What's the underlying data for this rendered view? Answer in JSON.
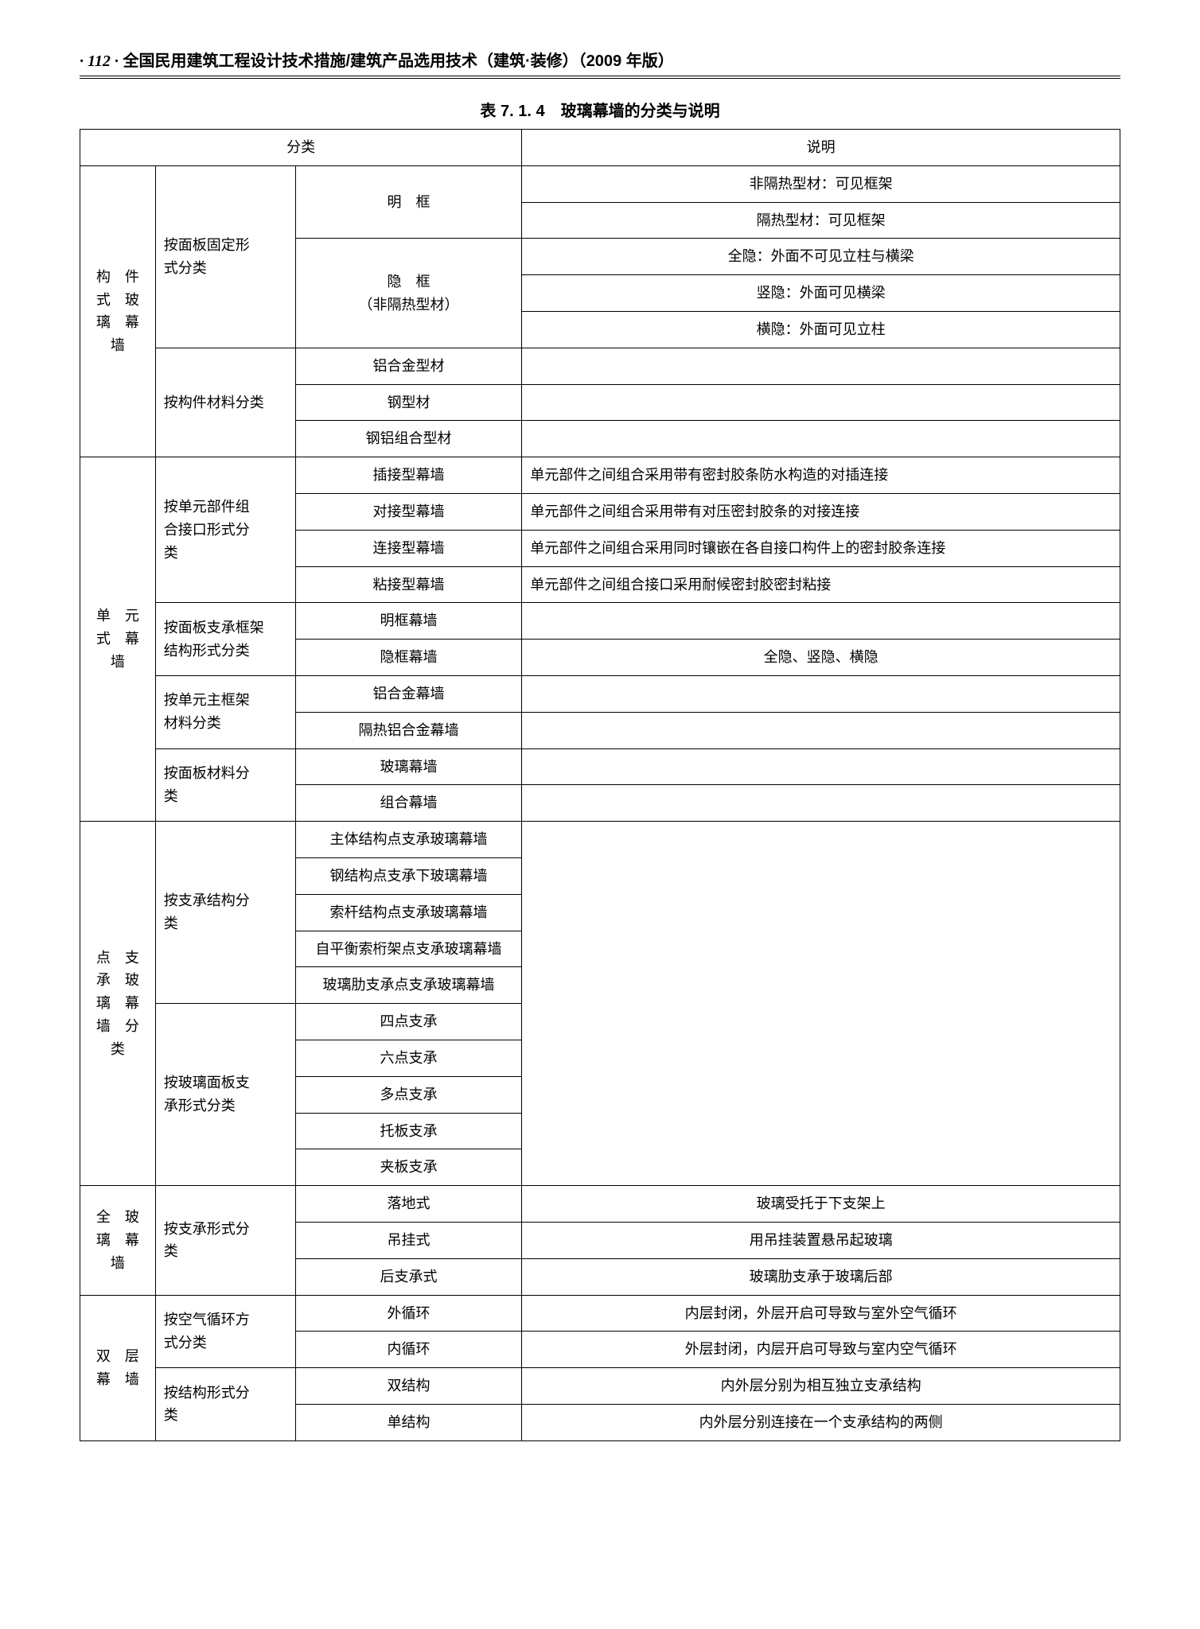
{
  "page": {
    "number": "· 112 ·",
    "title": "全国民用建筑工程设计技术措施/建筑产品选用技术（建筑·装修）（2009 年版）"
  },
  "caption": "表 7. 1. 4　玻璃幕墙的分类与说明",
  "head": {
    "c1": "分类",
    "c2": "说明"
  },
  "g1": {
    "name": "构　件\n式　玻\n璃　幕\n墙",
    "sub1": "按面板固定形\n式分类",
    "sub1a": "明　框",
    "sub1b": "隐　框\n（非隔热型材）",
    "r1": "非隔热型材：可见框架",
    "r2": "隔热型材：可见框架",
    "r3": "全隐：外面不可见立柱与横梁",
    "r4": "竖隐：外面可见横梁",
    "r5": "横隐：外面可见立柱",
    "sub2": "按构件材料分类",
    "r6": "铝合金型材",
    "r7": "钢型材",
    "r8": "钢铝组合型材"
  },
  "g2": {
    "name": "单　元\n式　幕\n墙",
    "sub1": "按单元部件组\n合接口形式分\n类",
    "r1a": "插接型幕墙",
    "r1b": "单元部件之间组合采用带有密封胶条防水构造的对插连接",
    "r2a": "对接型幕墙",
    "r2b": "单元部件之间组合采用带有对压密封胶条的对接连接",
    "r3a": "连接型幕墙",
    "r3b": "单元部件之间组合采用同时镶嵌在各自接口构件上的密封胶条连接",
    "r4a": "粘接型幕墙",
    "r4b": "单元部件之间组合接口采用耐候密封胶密封粘接",
    "sub2": "按面板支承框架\n结构形式分类",
    "r5a": "明框幕墙",
    "r5b": "",
    "r6a": "隐框幕墙",
    "r6b": "全隐、竖隐、横隐",
    "sub3": "按单元主框架\n材料分类",
    "r7a": "铝合金幕墙",
    "r8a": "隔热铝合金幕墙",
    "sub4": "按面板材料分\n类",
    "r9a": "玻璃幕墙",
    "r10a": "组合幕墙"
  },
  "g3": {
    "name": "点　支\n承　玻\n璃　幕\n墙　分\n类",
    "sub1": "按支承结构分\n类",
    "r1": "主体结构点支承玻璃幕墙",
    "r2": "钢结构点支承下玻璃幕墙",
    "r3": "索杆结构点支承玻璃幕墙",
    "r4": "自平衡索桁架点支承玻璃幕墙",
    "r5": "玻璃肋支承点支承玻璃幕墙",
    "sub2": "按玻璃面板支\n承形式分类",
    "r6": "四点支承",
    "r7": "六点支承",
    "r8": "多点支承",
    "r9": "托板支承",
    "r10": "夹板支承"
  },
  "g4": {
    "name": "全　玻\n璃　幕\n墙",
    "sub1": "按支承形式分\n类",
    "r1a": "落地式",
    "r1b": "玻璃受托于下支架上",
    "r2a": "吊挂式",
    "r2b": "用吊挂装置悬吊起玻璃",
    "r3a": "后支承式",
    "r3b": "玻璃肋支承于玻璃后部"
  },
  "g5": {
    "name": "双　层\n幕　墙",
    "sub1": "按空气循环方\n式分类",
    "r1a": "外循环",
    "r1b": "内层封闭，外层开启可导致与室外空气循环",
    "r2a": "内循环",
    "r2b": "外层封闭，内层开启可导致与室内空气循环",
    "sub2": "按结构形式分\n类",
    "r3a": "双结构",
    "r3b": "内外层分别为相互独立支承结构",
    "r4a": "单结构",
    "r4b": "内外层分别连接在一个支承结构的两侧"
  }
}
